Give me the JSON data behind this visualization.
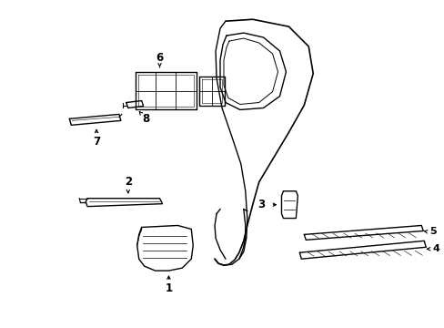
{
  "background_color": "#ffffff",
  "line_color": "#000000",
  "figure_width": 4.89,
  "figure_height": 3.6,
  "dpi": 100
}
